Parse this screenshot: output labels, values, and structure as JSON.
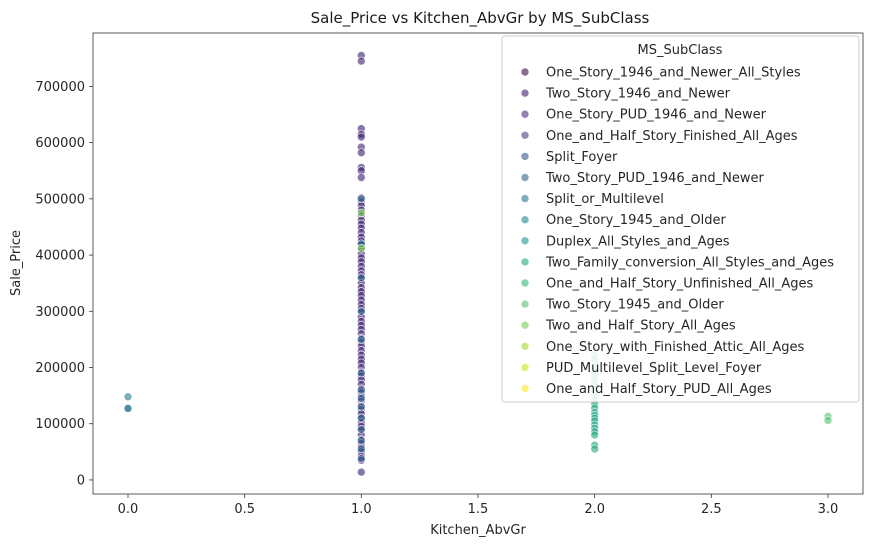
{
  "chart_data": {
    "type": "scatter",
    "title": "Sale_Price vs Kitchen_AbvGr by MS_SubClass",
    "xlabel": "Kitchen_AbvGr",
    "ylabel": "Sale_Price",
    "xlim": [
      -0.15,
      3.15
    ],
    "ylim": [
      -25000,
      795000
    ],
    "xticks": [
      0.0,
      0.5,
      1.0,
      1.5,
      2.0,
      2.5,
      3.0
    ],
    "xtick_labels": [
      "0.0",
      "0.5",
      "1.0",
      "1.5",
      "2.0",
      "2.5",
      "3.0"
    ],
    "yticks": [
      0,
      100000,
      200000,
      300000,
      400000,
      500000,
      600000,
      700000
    ],
    "ytick_labels": [
      "0",
      "100000",
      "200000",
      "300000",
      "400000",
      "500000",
      "600000",
      "700000"
    ],
    "grid": false,
    "legend": {
      "title": "MS_SubClass",
      "placement": "top-right",
      "entries": [
        {
          "label": "One_Story_1946_and_Newer_All_Styles",
          "color": "#440154"
        },
        {
          "label": "Two_Story_1946_and_Newer",
          "color": "#481a6c"
        },
        {
          "label": "One_Story_PUD_1946_and_Newer",
          "color": "#472f7d"
        },
        {
          "label": "One_and_Half_Story_Finished_All_Ages",
          "color": "#414487"
        },
        {
          "label": "Split_Foyer",
          "color": "#39568c"
        },
        {
          "label": "Two_Story_PUD_1946_and_Newer",
          "color": "#31688e"
        },
        {
          "label": "Split_or_Multilevel",
          "color": "#2a788e"
        },
        {
          "label": "One_Story_1945_and_Older",
          "color": "#23888e"
        },
        {
          "label": "Duplex_All_Styles_and_Ages",
          "color": "#1f988b"
        },
        {
          "label": "Two_Family_conversion_All_Styles_and_Ages",
          "color": "#22a884"
        },
        {
          "label": "One_and_Half_Story_Unfinished_All_Ages",
          "color": "#35b779"
        },
        {
          "label": "Two_Story_1945_and_Older",
          "color": "#54c568"
        },
        {
          "label": "Two_and_Half_Story_All_Ages",
          "color": "#7ad151"
        },
        {
          "label": "One_Story_with_Finished_Attic_All_Ages",
          "color": "#a5db36"
        },
        {
          "label": "PUD_Multilevel_Split_Level_Foyer",
          "color": "#d2e21b"
        },
        {
          "label": "One_and_Half_Story_PUD_All_Ages",
          "color": "#fde725"
        }
      ]
    },
    "series": [
      {
        "x": 0,
        "y": [
          148000,
          128000,
          127000
        ],
        "color": "#2a788e"
      },
      {
        "x": 1,
        "y": [
          755000,
          745000,
          625000,
          615000,
          610000,
          592000,
          582000,
          556000,
          550000,
          538000,
          502000,
          495000,
          488000,
          480000,
          470000,
          462000,
          455000,
          448000,
          440000,
          432000,
          425000,
          418000,
          410000,
          402000,
          395000,
          388000,
          380000,
          372000,
          365000,
          358000,
          350000,
          342000,
          335000,
          328000,
          320000,
          312000,
          305000,
          298000,
          290000,
          282000,
          275000,
          268000,
          260000,
          252000,
          245000,
          238000,
          230000,
          222000,
          215000,
          208000,
          200000,
          192000,
          185000,
          178000,
          170000,
          162000,
          155000,
          148000,
          140000,
          132000,
          125000,
          118000,
          110000,
          102000,
          95000,
          88000,
          80000,
          72000,
          65000,
          58000,
          50000,
          42000,
          35000,
          14000
        ],
        "color": "#3b1e6e"
      },
      {
        "x": 1,
        "y": [
          500000,
          420000,
          360000,
          300000,
          250000,
          190000,
          160000,
          145000,
          130000,
          110000,
          90000,
          70000,
          55000,
          38000
        ],
        "color": "#31688e"
      },
      {
        "x": 1,
        "y": [
          475000,
          412000
        ],
        "color": "#7ad151"
      },
      {
        "x": 2,
        "y": [
          270000,
          222000,
          215000,
          200000,
          190000,
          180000,
          170000,
          160000,
          150000,
          142000,
          135000,
          128000,
          120000,
          115000,
          110000,
          105000,
          98000,
          92000,
          86000,
          80000,
          62000,
          55000
        ],
        "color": "#22a884"
      },
      {
        "x": 3,
        "y": [
          113000,
          106000
        ],
        "color": "#54c568"
      }
    ]
  }
}
